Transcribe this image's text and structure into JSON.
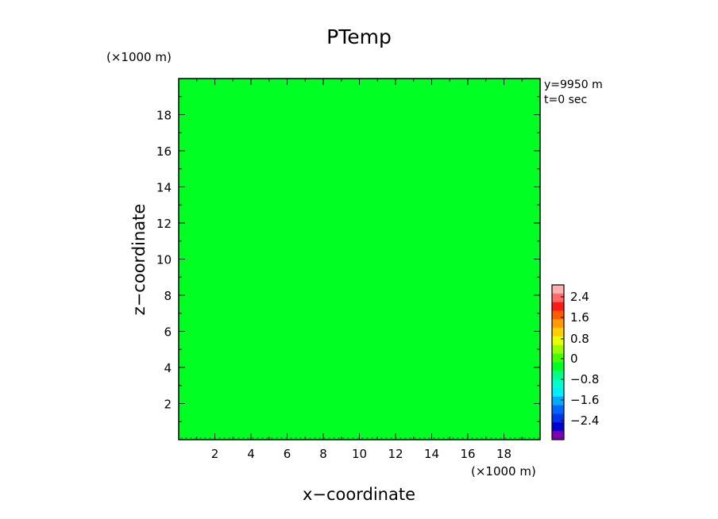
{
  "chart_data": {
    "type": "heatmap",
    "title": "PTemp",
    "xlabel": "x−coordinate",
    "ylabel": "z−coordinate",
    "x_unit": "(×1000 m)",
    "y_unit": "(×1000 m)",
    "xlim": [
      0,
      20
    ],
    "ylim": [
      0,
      20
    ],
    "x_ticks": [
      "2",
      "4",
      "6",
      "8",
      "10",
      "12",
      "14",
      "16",
      "18"
    ],
    "y_ticks": [
      "2",
      "4",
      "6",
      "8",
      "10",
      "12",
      "14",
      "16",
      "18"
    ],
    "field_value": 0,
    "field_color": "#00ff22",
    "annotations": [
      "y=9950 m",
      "t=0 sec"
    ],
    "colorbar": {
      "labels": [
        "2.4",
        "1.6",
        "0.8",
        "0",
        "−0.8",
        "−1.6",
        "−2.4"
      ],
      "colors_top_to_bottom": [
        "#ffb0b0",
        "#ff6a6a",
        "#ff1a1a",
        "#ff5a00",
        "#ff9a00",
        "#ffd000",
        "#eaff00",
        "#99ff00",
        "#44ff00",
        "#00ff22",
        "#00ff88",
        "#00ffcc",
        "#00eeff",
        "#00aaff",
        "#0066ff",
        "#0033ee",
        "#0000cc",
        "#7a00b0"
      ]
    }
  }
}
